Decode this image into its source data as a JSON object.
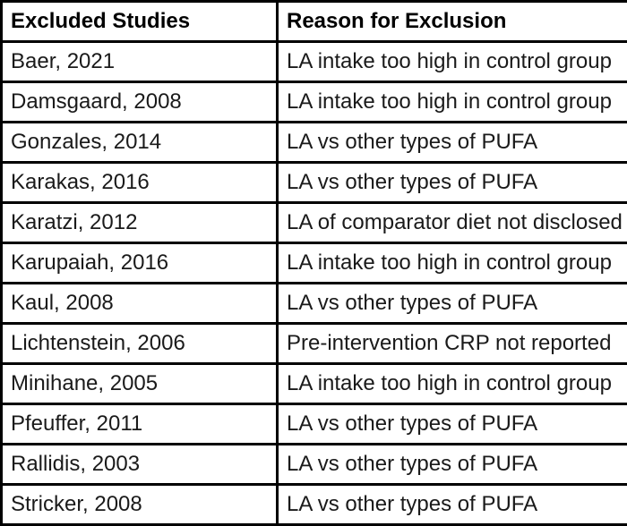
{
  "table": {
    "columns": [
      {
        "label": "Excluded Studies"
      },
      {
        "label": "Reason for Exclusion"
      }
    ],
    "rows": [
      {
        "study": "Baer, 2021",
        "reason": "LA intake too high in control group"
      },
      {
        "study": "Damsgaard, 2008",
        "reason": "LA intake too high in control group"
      },
      {
        "study": "Gonzales, 2014",
        "reason": "LA vs other types of PUFA"
      },
      {
        "study": "Karakas, 2016",
        "reason": "LA vs other types of PUFA"
      },
      {
        "study": "Karatzi, 2012",
        "reason": "LA of comparator diet not disclosed"
      },
      {
        "study": "Karupaiah, 2016",
        "reason": "LA intake too high in control group"
      },
      {
        "study": "Kaul, 2008",
        "reason": "LA vs other types of PUFA"
      },
      {
        "study": "Lichtenstein, 2006",
        "reason": "Pre-intervention CRP not reported"
      },
      {
        "study": "Minihane, 2005",
        "reason": "LA intake too high in control group"
      },
      {
        "study": "Pfeuffer, 2011",
        "reason": "LA vs other types of PUFA"
      },
      {
        "study": "Rallidis, 2003",
        "reason": "LA vs other types of PUFA"
      },
      {
        "study": "Stricker, 2008",
        "reason": "LA vs other types of PUFA"
      }
    ]
  },
  "colors": {
    "border": "#000000",
    "header_text": "#000000",
    "body_text": "#1a1a1a",
    "background": "#ffffff"
  }
}
